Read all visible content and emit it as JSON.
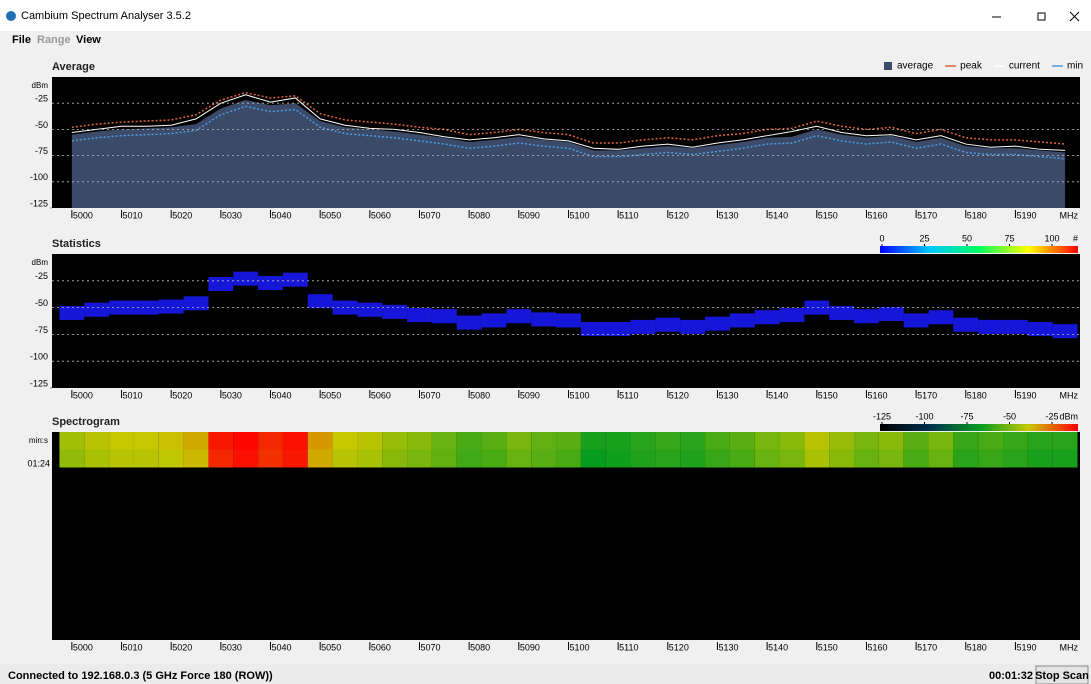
{
  "window": {
    "title": "Cambium Spectrum Analyser 3.5.2"
  },
  "menu": [
    "File",
    "Range",
    "View"
  ],
  "status": {
    "connection": "Connected to 192.168.0.3 (5 GHz Force 180 (ROW))",
    "elapsed": "00:01:32",
    "button": "Stop Scan"
  },
  "chart_data": [
    {
      "type": "area",
      "title": "Average",
      "background": "#000000",
      "x": [
        5000,
        5005,
        5010,
        5015,
        5020,
        5025,
        5030,
        5035,
        5040,
        5045,
        5050,
        5055,
        5060,
        5065,
        5070,
        5075,
        5080,
        5085,
        5090,
        5095,
        5100,
        5105,
        5110,
        5115,
        5120,
        5125,
        5130,
        5135,
        5140,
        5145,
        5150,
        5155,
        5160,
        5165,
        5170,
        5175,
        5180,
        5185,
        5190,
        5195,
        5200
      ],
      "series": [
        {
          "name": "average",
          "color": "#3b4a68",
          "style": "fill",
          "values": [
            -55,
            -52,
            -50,
            -49,
            -48,
            -45,
            -30,
            -22,
            -27,
            -25,
            -42,
            -48,
            -50,
            -52,
            -55,
            -58,
            -62,
            -60,
            -57,
            -60,
            -62,
            -70,
            -70,
            -68,
            -66,
            -68,
            -65,
            -62,
            -58,
            -57,
            -50,
            -55,
            -58,
            -56,
            -62,
            -58,
            -66,
            -68,
            -68,
            -70,
            -72
          ]
        },
        {
          "name": "peak",
          "color": "#e0643a",
          "style": "dash",
          "values": [
            -48,
            -45,
            -43,
            -42,
            -41,
            -36,
            -22,
            -15,
            -20,
            -18,
            -35,
            -41,
            -43,
            -45,
            -48,
            -50,
            -55,
            -53,
            -50,
            -53,
            -55,
            -63,
            -63,
            -60,
            -58,
            -60,
            -56,
            -54,
            -50,
            -49,
            -42,
            -47,
            -50,
            -48,
            -54,
            -50,
            -58,
            -60,
            -60,
            -62,
            -64
          ]
        },
        {
          "name": "current",
          "color": "#ffffff",
          "style": "line",
          "values": [
            -53,
            -50,
            -47,
            -47,
            -46,
            -40,
            -25,
            -17,
            -24,
            -20,
            -40,
            -46,
            -49,
            -50,
            -53,
            -57,
            -60,
            -58,
            -55,
            -59,
            -61,
            -68,
            -69,
            -66,
            -64,
            -67,
            -63,
            -60,
            -56,
            -52,
            -47,
            -53,
            -56,
            -55,
            -60,
            -56,
            -64,
            -67,
            -66,
            -69,
            -70
          ]
        },
        {
          "name": "min",
          "color": "#4f9be0",
          "style": "dash",
          "values": [
            -61,
            -58,
            -56,
            -55,
            -54,
            -51,
            -36,
            -28,
            -33,
            -31,
            -48,
            -54,
            -56,
            -58,
            -61,
            -64,
            -68,
            -66,
            -63,
            -66,
            -68,
            -76,
            -76,
            -74,
            -72,
            -74,
            -71,
            -68,
            -64,
            -63,
            -56,
            -61,
            -64,
            -62,
            -68,
            -64,
            -72,
            -74,
            -74,
            -76,
            -78
          ]
        }
      ],
      "xlim": [
        4996,
        5203
      ],
      "xticks": [
        5000,
        5010,
        5020,
        5030,
        5040,
        5050,
        5060,
        5070,
        5080,
        5090,
        5100,
        5110,
        5120,
        5130,
        5140,
        5150,
        5160,
        5170,
        5180,
        5190
      ],
      "xlabel": "MHz",
      "ylim": [
        -125,
        0
      ],
      "yticks": [
        -25,
        -50,
        -75,
        -100,
        -125
      ],
      "ylabel": "dBm",
      "grid": true
    },
    {
      "type": "scatter",
      "title": "Statistics",
      "background": "#000000",
      "color": "#1a1aff",
      "x": [
        5000,
        5005,
        5010,
        5015,
        5020,
        5025,
        5030,
        5035,
        5040,
        5045,
        5050,
        5055,
        5060,
        5065,
        5070,
        5075,
        5080,
        5085,
        5090,
        5095,
        5100,
        5105,
        5110,
        5115,
        5120,
        5125,
        5130,
        5135,
        5140,
        5145,
        5150,
        5155,
        5160,
        5165,
        5170,
        5175,
        5180,
        5185,
        5190,
        5195,
        5200
      ],
      "values": [
        -55,
        -52,
        -50,
        -50,
        -49,
        -46,
        -28,
        -23,
        -27,
        -24,
        -44,
        -50,
        -52,
        -54,
        -57,
        -58,
        -64,
        -62,
        -58,
        -61,
        -62,
        -70,
        -70,
        -68,
        -66,
        -68,
        -65,
        -62,
        -59,
        -57,
        -50,
        -55,
        -58,
        -56,
        -62,
        -59,
        -66,
        -68,
        -68,
        -70,
        -72
      ],
      "xlim": [
        4996,
        5203
      ],
      "xticks": [
        5000,
        5010,
        5020,
        5030,
        5040,
        5050,
        5060,
        5070,
        5080,
        5090,
        5100,
        5110,
        5120,
        5130,
        5140,
        5150,
        5160,
        5170,
        5180,
        5190
      ],
      "xlabel": "MHz",
      "ylim": [
        -125,
        0
      ],
      "yticks": [
        -25,
        -50,
        -75,
        -100,
        -125
      ],
      "ylabel": "dBm",
      "grid": true,
      "colorbar": {
        "lim": [
          0,
          100
        ],
        "ticks": [
          0,
          25,
          50,
          75,
          100
        ],
        "label": "#",
        "colormap": [
          "#0000ff",
          "#00c8ff",
          "#00ff60",
          "#ffff00",
          "#ff0000"
        ]
      }
    },
    {
      "type": "heatmap",
      "title": "Spectrogram",
      "background": "#000000",
      "x": [
        5000,
        5005,
        5010,
        5015,
        5020,
        5025,
        5030,
        5035,
        5040,
        5045,
        5050,
        5055,
        5060,
        5065,
        5070,
        5075,
        5080,
        5085,
        5090,
        5095,
        5100,
        5105,
        5110,
        5115,
        5120,
        5125,
        5130,
        5135,
        5140,
        5145,
        5150,
        5155,
        5160,
        5165,
        5170,
        5175,
        5180,
        5185,
        5190,
        5195,
        5200
      ],
      "rows": [
        [
          -55,
          -52,
          -50,
          -50,
          -49,
          -46,
          -28,
          -26,
          -30,
          -27,
          -44,
          -50,
          -52,
          -56,
          -58,
          -62,
          -66,
          -64,
          -60,
          -63,
          -64,
          -72,
          -72,
          -70,
          -68,
          -70,
          -66,
          -64,
          -60,
          -58,
          -52,
          -56,
          -60,
          -58,
          -64,
          -60,
          -68,
          -66,
          -68,
          -70,
          -70
        ],
        [
          -57,
          -54,
          -52,
          -52,
          -51,
          -48,
          -30,
          -27,
          -31,
          -28,
          -46,
          -52,
          -54,
          -58,
          -60,
          -63,
          -67,
          -66,
          -62,
          -64,
          -66,
          -74,
          -73,
          -71,
          -70,
          -71,
          -68,
          -66,
          -62,
          -60,
          -54,
          -58,
          -62,
          -60,
          -66,
          -62,
          -70,
          -68,
          -70,
          -72,
          -72
        ]
      ],
      "row_labels": [
        null,
        "01:24"
      ],
      "xlim": [
        4996,
        5203
      ],
      "xticks": [
        5000,
        5010,
        5020,
        5030,
        5040,
        5050,
        5060,
        5070,
        5080,
        5090,
        5100,
        5110,
        5120,
        5130,
        5140,
        5150,
        5160,
        5170,
        5180,
        5190
      ],
      "xlabel": "MHz",
      "ylabel": "min:s",
      "colorbar": {
        "lim": [
          -125,
          -25
        ],
        "ticks": [
          -125,
          -100,
          -75,
          -50,
          -25
        ],
        "label": "dBm",
        "colormap": [
          "#000000",
          "#003050",
          "#009a20",
          "#c8c800",
          "#ff0000"
        ]
      }
    }
  ]
}
